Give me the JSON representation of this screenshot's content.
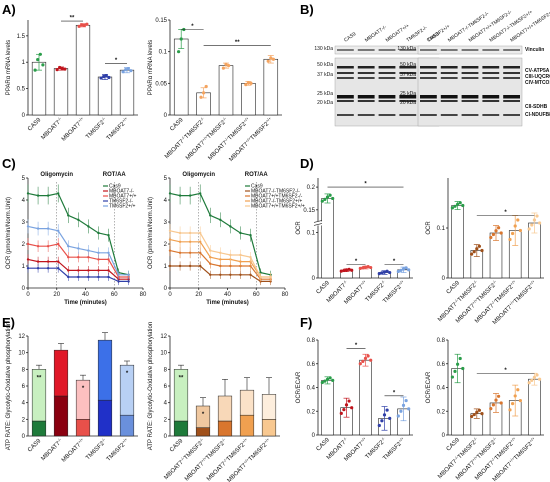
{
  "panels": {
    "A": "A)",
    "B": "B)",
    "C": "C)",
    "D": "D)",
    "E": "E)",
    "F": "F)"
  },
  "chart_data": [
    {
      "id": "A1",
      "type": "bar",
      "ylabel": "PPARα mRNA levels",
      "ylim": [
        0,
        1.8
      ],
      "yticks": [
        0,
        0.5,
        1,
        1.5
      ],
      "categories": [
        "CAS9",
        "MBOAT7-/-",
        "MBOAT7+/+",
        "TM6SF2-/-",
        "TM6SF2+/+"
      ],
      "values": [
        1.0,
        0.88,
        1.7,
        0.72,
        0.85
      ],
      "errors": [
        0.15,
        0.03,
        0.03,
        0.05,
        0.05
      ],
      "colors": [
        "#2a9d4a",
        "#c0141c",
        "#e8504a",
        "#2f3fa8",
        "#7aa3e0"
      ],
      "points": [
        [
          0.85,
          1.05,
          1.15,
          0.95
        ],
        [
          0.86,
          0.9,
          0.88,
          0.87
        ],
        [
          1.68,
          1.71,
          1.7,
          1.72
        ],
        [
          0.7,
          0.73,
          0.74,
          0.71
        ],
        [
          0.82,
          0.86,
          0.88,
          0.84
        ]
      ],
      "sig": [
        {
          "from": 1,
          "to": 2,
          "label": "**",
          "y": 1.78
        },
        {
          "from": 3,
          "to": 4,
          "label": "*",
          "y": 0.98
        }
      ]
    },
    {
      "id": "A2",
      "type": "bar",
      "ylabel": "PPARα mRNA levels",
      "ylim": [
        0,
        0.15
      ],
      "yticks": [
        0,
        0.05,
        0.1,
        0.15
      ],
      "categories": [
        "CAS9",
        "MBOAT7-/-TM6SF2-/-",
        "MBOAT7+/+TM6SF2-/-",
        "MBOAT7-/-TM6SF2+/+",
        "MBOAT7+/+TM6SF2+/+"
      ],
      "values": [
        0.12,
        0.035,
        0.078,
        0.05,
        0.088
      ],
      "errors": [
        0.015,
        0.008,
        0.004,
        0.003,
        0.006
      ],
      "colors": [
        "#2a9d4a",
        "#f4a460",
        "#f4a460",
        "#f4a460",
        "#f4a460"
      ],
      "points": [
        [
          0.1,
          0.12,
          0.135
        ],
        [
          0.028,
          0.035,
          0.045
        ],
        [
          0.074,
          0.08,
          0.078
        ],
        [
          0.048,
          0.051,
          0.05
        ],
        [
          0.085,
          0.09,
          0.088
        ]
      ],
      "sig": [
        {
          "from": 0,
          "to": 1,
          "label": "*",
          "y": 0.135
        },
        {
          "from": 1,
          "to": 4,
          "label": "**",
          "y": 0.11
        }
      ]
    },
    {
      "id": "C1",
      "type": "line",
      "ylabel": "OCR (pmol/min/Norm.Unit)",
      "xlabel": "Time (minutes)",
      "xlim": [
        0,
        80
      ],
      "ylim": [
        0,
        5
      ],
      "xticks": [
        0,
        20,
        40,
        60,
        80
      ],
      "yticks": [
        0,
        1,
        2,
        3,
        4,
        5
      ],
      "annotations": [
        {
          "label": "Oligomycin",
          "x": 20
        },
        {
          "label": "ROT/AA",
          "x": 60
        }
      ],
      "x": [
        0,
        7,
        14,
        21,
        28,
        35,
        42,
        49,
        56,
        63,
        70
      ],
      "series": [
        {
          "name": "Cas9",
          "color": "#1e7a3a",
          "values": [
            4.3,
            4.2,
            4.2,
            4.3,
            3.3,
            3.1,
            2.8,
            2.5,
            2.4,
            0.7,
            0.6
          ]
        },
        {
          "name": "MBOAT7-/-",
          "color": "#c0141c",
          "values": [
            1.3,
            1.2,
            1.2,
            1.2,
            0.8,
            0.8,
            0.8,
            0.8,
            0.8,
            0.4,
            0.4
          ]
        },
        {
          "name": "MBOAT7+/+",
          "color": "#e8504a",
          "values": [
            2.0,
            1.9,
            1.9,
            2.0,
            1.4,
            1.4,
            1.4,
            1.3,
            1.3,
            0.5,
            0.5
          ]
        },
        {
          "name": "TM6SF2-/-",
          "color": "#2f3fa8",
          "values": [
            0.9,
            0.9,
            0.9,
            0.9,
            0.5,
            0.5,
            0.5,
            0.5,
            0.5,
            0.3,
            0.3
          ]
        },
        {
          "name": "TM6SF2+/+",
          "color": "#7aa3e0",
          "values": [
            2.8,
            2.7,
            2.7,
            2.6,
            1.9,
            1.8,
            1.7,
            1.6,
            1.6,
            0.6,
            0.6
          ]
        }
      ]
    },
    {
      "id": "C2",
      "type": "line",
      "ylabel": "OCR (pmol/min/Norm.Unit)",
      "xlabel": "Time (minutes)",
      "xlim": [
        0,
        80
      ],
      "ylim": [
        0,
        5
      ],
      "xticks": [
        0,
        20,
        40,
        60,
        80
      ],
      "yticks": [
        0,
        1,
        2,
        3,
        4,
        5
      ],
      "annotations": [
        {
          "label": "Oligomycin",
          "x": 20
        },
        {
          "label": "ROT/AA",
          "x": 60
        }
      ],
      "x": [
        0,
        7,
        14,
        21,
        28,
        35,
        42,
        49,
        56,
        63,
        70
      ],
      "series": [
        {
          "name": "Cas9",
          "color": "#1e7a3a",
          "values": [
            4.3,
            4.2,
            4.2,
            4.3,
            3.3,
            3.1,
            2.8,
            2.5,
            2.4,
            0.7,
            0.6
          ]
        },
        {
          "name": "MBOAT7-/-TM6SF2-/-",
          "color": "#a0501a",
          "values": [
            1.0,
            1.0,
            1.0,
            1.0,
            0.6,
            0.6,
            0.6,
            0.6,
            0.6,
            0.3,
            0.3
          ]
        },
        {
          "name": "MBOAT7+/+TM6SF2-/-",
          "color": "#d9762e",
          "values": [
            1.7,
            1.6,
            1.6,
            1.6,
            1.1,
            1.0,
            1.0,
            1.0,
            1.0,
            0.4,
            0.4
          ]
        },
        {
          "name": "MBOAT7-/-TM6SF2+/+",
          "color": "#f0a050",
          "values": [
            2.2,
            2.1,
            2.1,
            2.1,
            1.4,
            1.3,
            1.3,
            1.2,
            1.2,
            0.5,
            0.5
          ]
        },
        {
          "name": "MBOAT7+/+TM6SF2+/+",
          "color": "#f8c890",
          "values": [
            2.6,
            2.5,
            2.5,
            2.5,
            1.7,
            1.6,
            1.5,
            1.5,
            1.4,
            0.5,
            0.5
          ]
        }
      ]
    },
    {
      "id": "D1",
      "type": "bar",
      "ylabel": "OCR",
      "ylim": [
        0,
        0.22
      ],
      "yticks": [
        0,
        0.1,
        0.15,
        0.2
      ],
      "broken_axis": true,
      "categories": [
        "CAS9",
        "MBOAT7-/-",
        "MBOAT7+/+",
        "TM6SF2-/-",
        "TM6SF2+/+"
      ],
      "values": [
        0.175,
        0.017,
        0.023,
        0.012,
        0.018
      ],
      "errors": [
        0.01,
        0.003,
        0.003,
        0.004,
        0.006
      ],
      "colors": [
        "#2a9d4a",
        "#c0141c",
        "#e8504a",
        "#2f3fa8",
        "#7aa3e0"
      ],
      "sig": [
        {
          "from": 0,
          "to": 4,
          "label": "*",
          "y": 0.2
        },
        {
          "from": 1,
          "to": 2,
          "label": "*",
          "y": 0.03
        },
        {
          "from": 3,
          "to": 4,
          "label": "*",
          "y": 0.03
        }
      ]
    },
    {
      "id": "D2",
      "type": "bar",
      "ylabel": "OCR",
      "ylim": [
        0,
        0.2
      ],
      "yticks": [
        0,
        0.1
      ],
      "categories": [
        "CAS9",
        "MBOAT7-/-TM6SF2-/-",
        "MBOAT7+/+TM6SF2-/-",
        "MBOAT7-/-TM6SF2+/+",
        "MBOAT7+/+TM6SF2+/+"
      ],
      "values": [
        0.145,
        0.055,
        0.09,
        0.095,
        0.11
      ],
      "errors": [
        0.008,
        0.012,
        0.015,
        0.03,
        0.02
      ],
      "colors": [
        "#2a9d4a",
        "#a0501a",
        "#d9762e",
        "#f0a050",
        "#f8c890"
      ],
      "sig": [
        {
          "from": 1,
          "to": 4,
          "label": "*",
          "y": 0.125
        }
      ]
    },
    {
      "id": "E1",
      "type": "bar",
      "ylabel": "ATP RATE: Glycolytic-Oxidative phosphorylation",
      "ylim": [
        0,
        12
      ],
      "yticks": [
        0,
        2,
        4,
        6,
        8,
        10,
        12
      ],
      "categories": [
        "CAS9",
        "MBOAT7-/-",
        "MBOAT7+/+",
        "TM6SF2-/-",
        "TM6SF2+/+"
      ],
      "stacked": [
        {
          "name": "Glycolytic",
          "values": [
            1.8,
            4.8,
            2.0,
            4.3,
            2.5
          ]
        },
        {
          "name": "Oxidative",
          "values": [
            6.2,
            5.5,
            4.7,
            7.2,
            6.0
          ]
        }
      ],
      "colors_bottom": [
        "#1e7a3a",
        "#8a0010",
        "#e8504a",
        "#2030c8",
        "#6a90dc"
      ],
      "colors_top": [
        "#c8f0c0",
        "#e01828",
        "#fcc0c0",
        "#3c70e8",
        "#b8d0f4"
      ],
      "errors": [
        0.5,
        0.8,
        0.6,
        0.9,
        0.5
      ],
      "sig_labels": [
        "**",
        "",
        "*",
        "",
        "*"
      ]
    },
    {
      "id": "E2",
      "type": "bar",
      "ylabel": "ATP RATE: Glycolytic-Oxidative phosphorylation",
      "ylim": [
        0,
        12
      ],
      "yticks": [
        0,
        2,
        4,
        6,
        8,
        10,
        12
      ],
      "categories": [
        "CAS9",
        "MBOAT7-/-TM6SF2-/-",
        "MBOAT7+/+TM6SF2-/-",
        "MBOAT7-/-TM6SF2+/+",
        "MBOAT7+/+TM6SF2+/+"
      ],
      "stacked": [
        {
          "name": "Glycolytic",
          "values": [
            1.8,
            1.0,
            1.8,
            2.5,
            2.0
          ]
        },
        {
          "name": "Oxidative",
          "values": [
            6.2,
            2.6,
            3.0,
            3.0,
            3.0
          ]
        }
      ],
      "colors_bottom": [
        "#1e7a3a",
        "#a0501a",
        "#d9762e",
        "#f0a050",
        "#f8c890"
      ],
      "colors_top": [
        "#c8f0c0",
        "#f0c8a0",
        "#f8d8b8",
        "#fbe2c8",
        "#fdeedd"
      ],
      "errors": [
        0.5,
        1.0,
        2.0,
        1.5,
        2.0
      ],
      "sig_labels": [
        "**",
        "*",
        "",
        "",
        ""
      ]
    },
    {
      "id": "F1",
      "type": "bar",
      "ylabel": "OCR/ECAR",
      "ylim": [
        0,
        0.8
      ],
      "yticks": [
        0,
        0.2,
        0.4,
        0.6,
        0.8
      ],
      "categories": [
        "CAS9",
        "MBOAT7-/-",
        "MBOAT7+/+",
        "TM6SF2-/-",
        "TM6SF2+/+"
      ],
      "values": [
        0.46,
        0.23,
        0.63,
        0.14,
        0.22
      ],
      "errors": [
        0.03,
        0.08,
        0.05,
        0.1,
        0.1
      ],
      "colors": [
        "#2a9d4a",
        "#c0141c",
        "#e8504a",
        "#2f3fa8",
        "#7aa3e0"
      ],
      "sig": [
        {
          "from": 1,
          "to": 2,
          "label": "*",
          "y": 0.73
        },
        {
          "from": 3,
          "to": 4,
          "label": "*",
          "y": 0.33
        }
      ]
    },
    {
      "id": "F2",
      "type": "bar",
      "ylabel": "OCR/ECAR",
      "ylim": [
        0,
        0.8
      ],
      "yticks": [
        0,
        0.2,
        0.4,
        0.6,
        0.8
      ],
      "categories": [
        "CAS9",
        "MBOAT7-/-TM6SF2-/-",
        "MBOAT7+/+TM6SF2-/-",
        "MBOAT7-/-TM6SF2+/+",
        "MBOAT7+/+TM6SF2+/+"
      ],
      "values": [
        0.56,
        0.18,
        0.27,
        0.29,
        0.47
      ],
      "errors": [
        0.12,
        0.04,
        0.08,
        0.13,
        0.05
      ],
      "colors": [
        "#2a9d4a",
        "#a0501a",
        "#d9762e",
        "#f0a050",
        "#f8c890"
      ],
      "sig": [
        {
          "from": 1,
          "to": 4,
          "label": "*",
          "y": 0.52
        }
      ]
    }
  ],
  "western_blot": {
    "lanes_left": [
      "CAS9",
      "MBOAT7-/-",
      "MBOAT7+/+",
      "TM6SF2-/-",
      "TM6SF2+/+"
    ],
    "lanes_right": [
      "CAS9",
      "MBOAT7-/-TM6SF2-/-",
      "MBOAT7+/+TM6SF2-/-",
      "MBOAT7-/-TM6SF2+/+",
      "MBOAT7+/+TM6SF2+/+"
    ],
    "kda_left": [
      "130 kDa",
      "50 kDa",
      "37 kDa",
      "25 kDa",
      "20 kDa"
    ],
    "kda_right": [
      "130 kDa",
      "50 kDa",
      "37 kDa",
      "25 kDa",
      "20 kDa"
    ],
    "labels": [
      "Vinculin",
      "CV-ATP5A",
      "CIII-UQCRC2",
      "CIV-MTCO1",
      "CII-SDHB",
      "CI-NDUFB8"
    ]
  }
}
